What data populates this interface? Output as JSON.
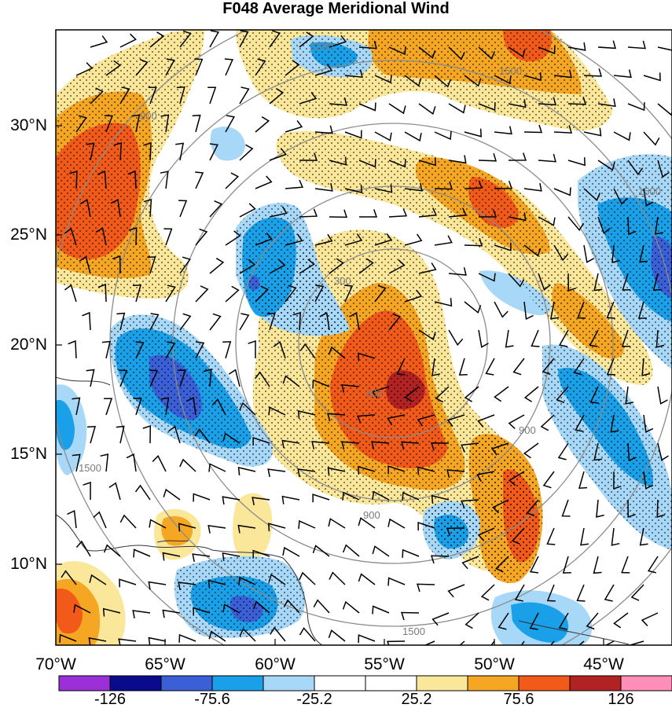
{
  "title": "F048 Average Meridional Wind",
  "lat_labels": [
    "30°N",
    "25°N",
    "20°N",
    "15°N",
    "10°N"
  ],
  "lon_labels": [
    "70°W",
    "65°W",
    "60°W",
    "55°W",
    "50°W",
    "45°W"
  ],
  "colorbar": {
    "colors": [
      "#9b30d9",
      "#0a0a8c",
      "#3a5fd6",
      "#1aa0e8",
      "#a8d8f8",
      "#ffffff",
      "#ffffff",
      "#fbe79a",
      "#f5a623",
      "#f25a1a",
      "#b22222",
      "#ff8fb8"
    ],
    "labels": [
      "-126",
      "-75.6",
      "-25.2",
      "25.2",
      "75.6",
      "126"
    ]
  },
  "range_rings": {
    "labels": [
      "300",
      "300",
      "900",
      "900",
      "900",
      "1500",
      "1500",
      "1500",
      "1500",
      "1500"
    ]
  }
}
